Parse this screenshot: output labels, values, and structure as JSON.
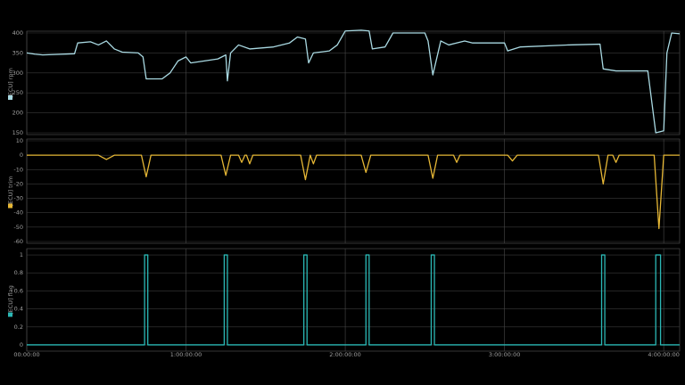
{
  "chart_data": [
    {
      "type": "line",
      "x": [
        0,
        0.05,
        0.1,
        0.3,
        0.32,
        0.4,
        0.45,
        0.5,
        0.55,
        0.6,
        0.7,
        0.73,
        0.75,
        0.85,
        0.9,
        0.95,
        1.0,
        1.03,
        1.2,
        1.25,
        1.26,
        1.28,
        1.33,
        1.4,
        1.55,
        1.65,
        1.7,
        1.75,
        1.77,
        1.8,
        1.9,
        1.95,
        2.0,
        2.1,
        2.15,
        2.17,
        2.25,
        2.3,
        2.5,
        2.52,
        2.55,
        2.6,
        2.65,
        2.75,
        2.8,
        3.0,
        3.02,
        3.1,
        3.4,
        3.6,
        3.62,
        3.7,
        3.9,
        3.95,
        4.0,
        4.02,
        4.05,
        4.1
      ],
      "series": [
        {
          "name": "[ECU] rpm",
          "color": "#a9d9e2",
          "values": [
            350,
            347,
            345,
            348,
            375,
            378,
            370,
            380,
            360,
            352,
            350,
            340,
            285,
            285,
            300,
            330,
            340,
            325,
            335,
            345,
            280,
            350,
            370,
            360,
            365,
            375,
            390,
            385,
            325,
            350,
            355,
            370,
            405,
            407,
            405,
            360,
            365,
            400,
            400,
            380,
            295,
            380,
            370,
            380,
            375,
            375,
            355,
            365,
            370,
            372,
            310,
            305,
            305,
            150,
            155,
            350,
            400,
            398
          ]
        }
      ],
      "ylim": [
        150,
        400
      ],
      "yticks": [
        150,
        200,
        250,
        300,
        350,
        400
      ]
    },
    {
      "type": "line",
      "x": [
        0,
        0.45,
        0.5,
        0.55,
        0.72,
        0.75,
        0.78,
        1.22,
        1.25,
        1.28,
        1.33,
        1.35,
        1.37,
        1.38,
        1.4,
        1.42,
        1.72,
        1.75,
        1.78,
        1.8,
        1.82,
        2.1,
        2.13,
        2.16,
        2.52,
        2.55,
        2.58,
        2.68,
        2.7,
        2.72,
        3.02,
        3.05,
        3.08,
        3.59,
        3.62,
        3.65,
        3.68,
        3.7,
        3.72,
        3.94,
        3.97,
        4.0,
        4.1
      ],
      "series": [
        {
          "name": "[ECU] trim",
          "color": "#e6b735",
          "values": [
            0,
            0,
            -3,
            0,
            0,
            -15,
            0,
            0,
            -14,
            0,
            0,
            -5,
            0,
            0,
            -6,
            0,
            0,
            -17,
            0,
            -6,
            0,
            0,
            -12,
            0,
            0,
            -16,
            0,
            0,
            -5,
            0,
            0,
            -4,
            0,
            0,
            -20,
            0,
            0,
            -5,
            0,
            0,
            -51,
            0,
            0
          ]
        }
      ],
      "ylim": [
        -60,
        10
      ],
      "yticks": [
        -60,
        -50,
        -40,
        -30,
        -20,
        -10,
        0,
        10
      ]
    },
    {
      "type": "line",
      "x": [
        0,
        0.74,
        0.74,
        0.76,
        0.76,
        1.24,
        1.24,
        1.26,
        1.26,
        1.74,
        1.74,
        1.76,
        1.76,
        2.13,
        2.13,
        2.15,
        2.15,
        2.54,
        2.54,
        2.56,
        2.56,
        3.61,
        3.61,
        3.63,
        3.63,
        3.95,
        3.95,
        3.98,
        3.98,
        4.1
      ],
      "series": [
        {
          "name": "[ECU] flag",
          "color": "#2bb8b5",
          "values": [
            0,
            0,
            1,
            1,
            0,
            0,
            1,
            1,
            0,
            0,
            1,
            1,
            0,
            0,
            1,
            1,
            0,
            0,
            1,
            1,
            0,
            0,
            1,
            1,
            0,
            0,
            1,
            1,
            0,
            0
          ]
        }
      ],
      "ylim": [
        -0.05,
        1.05
      ],
      "yticks": [
        0,
        0.2,
        0.4,
        0.6,
        0.8,
        1
      ],
      "xlim": [
        0,
        4.1
      ],
      "xticks": [
        {
          "value": 0,
          "label": "00:00:00"
        },
        {
          "value": 1,
          "label": "1:00:00:00"
        },
        {
          "value": 2,
          "label": "2:00:00:00"
        },
        {
          "value": 3,
          "label": "3:00:00:00"
        },
        {
          "value": 4,
          "label": "4:00:00:00"
        }
      ]
    }
  ]
}
